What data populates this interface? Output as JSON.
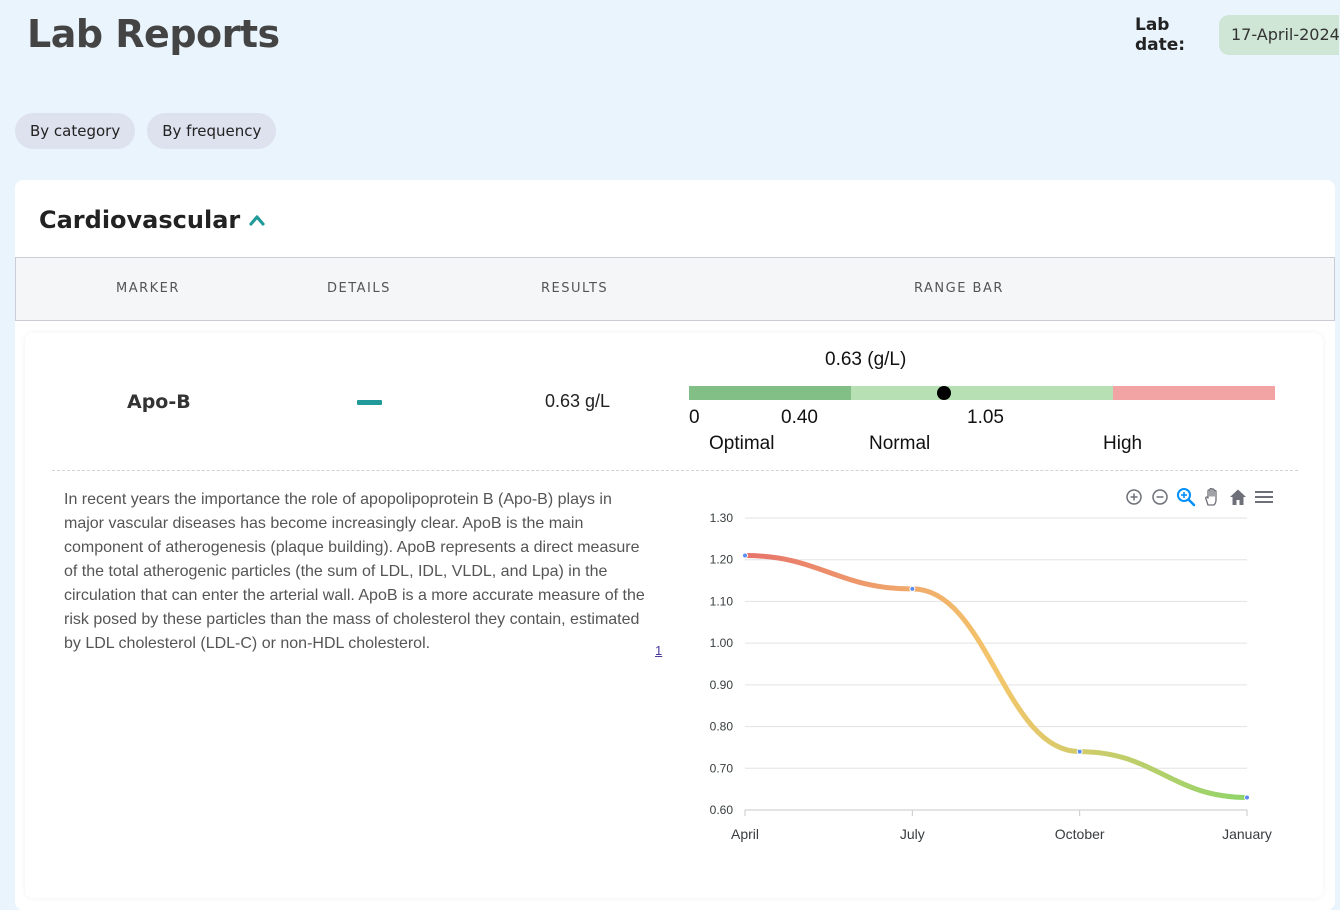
{
  "header": {
    "title": "Lab Reports",
    "lab_date_label": "Lab date:",
    "lab_date_value": "17-April-2024"
  },
  "view_tabs": [
    {
      "label": "By category"
    },
    {
      "label": "By frequency"
    }
  ],
  "section": {
    "title": "Cardiovascular",
    "columns": [
      "MARKER",
      "DETAILS",
      "RESULTS",
      "RANGE BAR"
    ]
  },
  "marker": {
    "name": "Apo-B",
    "result": "0.63 g/L",
    "range_label": "0.63 (g/L)",
    "range": {
      "min": 0,
      "max": 1.45,
      "value": 0.63,
      "ticks": [
        "0",
        "0.40",
        "1.05"
      ],
      "zones": [
        "Optimal",
        "Normal",
        "High"
      ],
      "zone_bounds": [
        0,
        0.4,
        1.05,
        1.45
      ],
      "zone_colors": [
        "#82bf87",
        "#b7e0b5",
        "#f2a3a3"
      ]
    },
    "description": "In recent years the importance the role of apopolipoprotein B (Apo-B) plays in major vascular diseases has become increasingly clear. ApoB is the main component of atherogenesis (plaque building). ApoB represents a direct measure of the total atherogenic particles (the sum of LDL, IDL, VLDL, and Lpa) in the circulation that can enter the arterial wall. ApoB is a more accurate measure of the risk posed by these particles than the mass of cholesterol they contain, estimated by LDL cholesterol (LDL-C) or non-HDL cholesterol.",
    "footnote": "1"
  },
  "toolbar": [
    "zoom-in-icon",
    "zoom-out-icon",
    "selection-zoom-icon",
    "pan-icon",
    "reset-home-icon",
    "menu-icon"
  ],
  "chart_data": {
    "type": "line",
    "categories": [
      "April",
      "July",
      "October",
      "January"
    ],
    "values": [
      1.21,
      1.13,
      0.74,
      0.63
    ],
    "ylim": [
      0.6,
      1.3
    ],
    "yticks": [
      "1.30",
      "1.20",
      "1.10",
      "1.00",
      "0.90",
      "0.80",
      "0.70",
      "0.60"
    ],
    "grid": true,
    "line_gradient": [
      "#e8726b",
      "#f4c66b",
      "#8fd56a"
    ]
  }
}
